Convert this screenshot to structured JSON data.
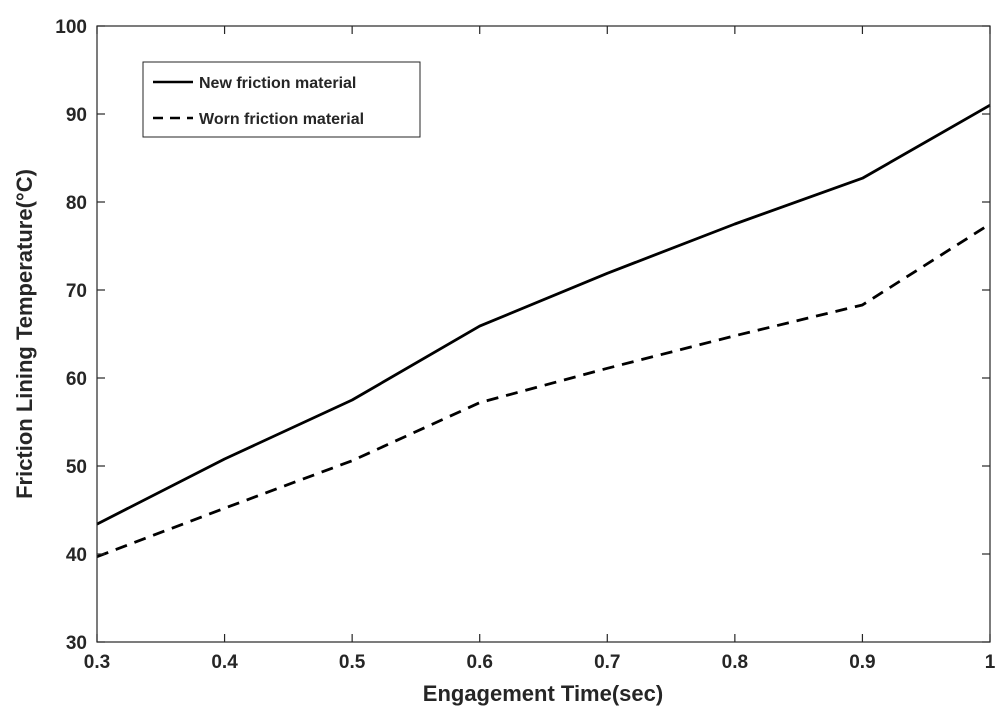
{
  "chart_data": {
    "type": "line",
    "title": "",
    "xlabel": "Engagement Time(sec)",
    "ylabel": "Friction Lining Temperature(°C)",
    "xlim": [
      0.3,
      1
    ],
    "ylim": [
      30,
      100
    ],
    "x_ticks": [
      "0.3",
      "0.4",
      "0.5",
      "0.6",
      "0.7",
      "0.8",
      "0.9",
      "1"
    ],
    "y_ticks": [
      "30",
      "40",
      "50",
      "60",
      "70",
      "80",
      "90",
      "100"
    ],
    "grid": false,
    "legend_position": "top-left",
    "x": [
      0.3,
      0.4,
      0.5,
      0.6,
      0.7,
      0.8,
      0.9,
      1.0
    ],
    "series": [
      {
        "name": "New friction material",
        "line_style": "solid",
        "color": "#000000",
        "values": [
          43.4,
          50.8,
          57.5,
          65.9,
          71.9,
          77.5,
          82.7,
          91.0
        ]
      },
      {
        "name": "Worn friction material",
        "line_style": "dashed",
        "color": "#000000",
        "values": [
          39.7,
          45.2,
          50.6,
          57.2,
          61.1,
          64.8,
          68.3,
          77.5
        ]
      }
    ]
  }
}
